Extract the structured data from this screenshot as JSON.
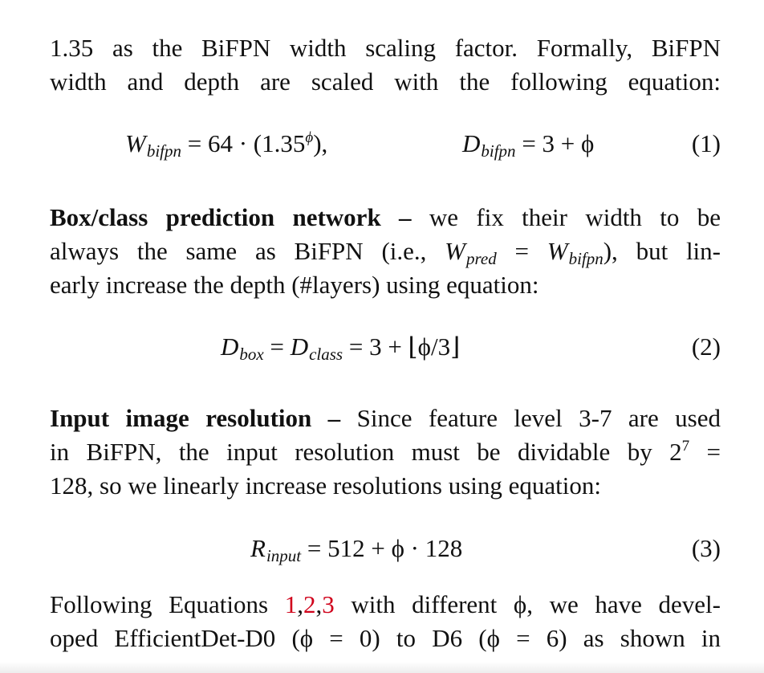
{
  "para1": {
    "line1": "1.35 as the BiFPN width scaling factor. Formally, BiFPN",
    "line2": "width and depth are scaled with the following equation:"
  },
  "eq1": {
    "lhs_var": "W",
    "lhs_sub": "bifpn",
    "rhs": "= 64 · (1.35",
    "sup": "ϕ",
    "close": "),",
    "lhs2_var": "D",
    "lhs2_sub": "bifpn",
    "rhs2": "= 3 + ϕ",
    "number": "(1)"
  },
  "para2": {
    "heading": "Box/class prediction network –",
    "line1_rest": "we fix their width to be",
    "line2_a": "always the same as BiFPN (i.e., ",
    "w_pred_var": "W",
    "w_pred_sub": "pred",
    "eq_sign": " = ",
    "w_bifpn_var": "W",
    "w_bifpn_sub": "bifpn",
    "line2_b": "), but lin-",
    "line3": "early increase the depth (#layers) using equation:"
  },
  "eq2": {
    "d_box_var": "D",
    "d_box_sub": "box",
    "mid": " = ",
    "d_class_var": "D",
    "d_class_sub": "class",
    "rhs": " = 3 + ⌊ϕ/3⌋",
    "number": "(2)"
  },
  "para3": {
    "heading": "Input image resolution –",
    "line1_rest": "Since feature level 3-7 are used",
    "line2_a": "in BiFPN, the input resolution must be dividable by 2",
    "line2_sup": "7",
    "line2_b": " =",
    "line3": "128, so we linearly increase resolutions using equation:"
  },
  "eq3": {
    "r_var": "R",
    "r_sub": "input",
    "rhs": " = 512 + ϕ · 128",
    "number": "(3)"
  },
  "para4": {
    "line1_a": "Following Equations ",
    "ref1": "1",
    "comma1": ",",
    "ref2": "2",
    "comma2": ",",
    "ref3": "3",
    "line1_b": " with different ϕ, we have devel-",
    "line2": "oped EfficientDet-D0 (ϕ = 0) to D6 (ϕ = 6) as shown in"
  },
  "colors": {
    "reference": "#d0021b",
    "text": "#111111"
  }
}
